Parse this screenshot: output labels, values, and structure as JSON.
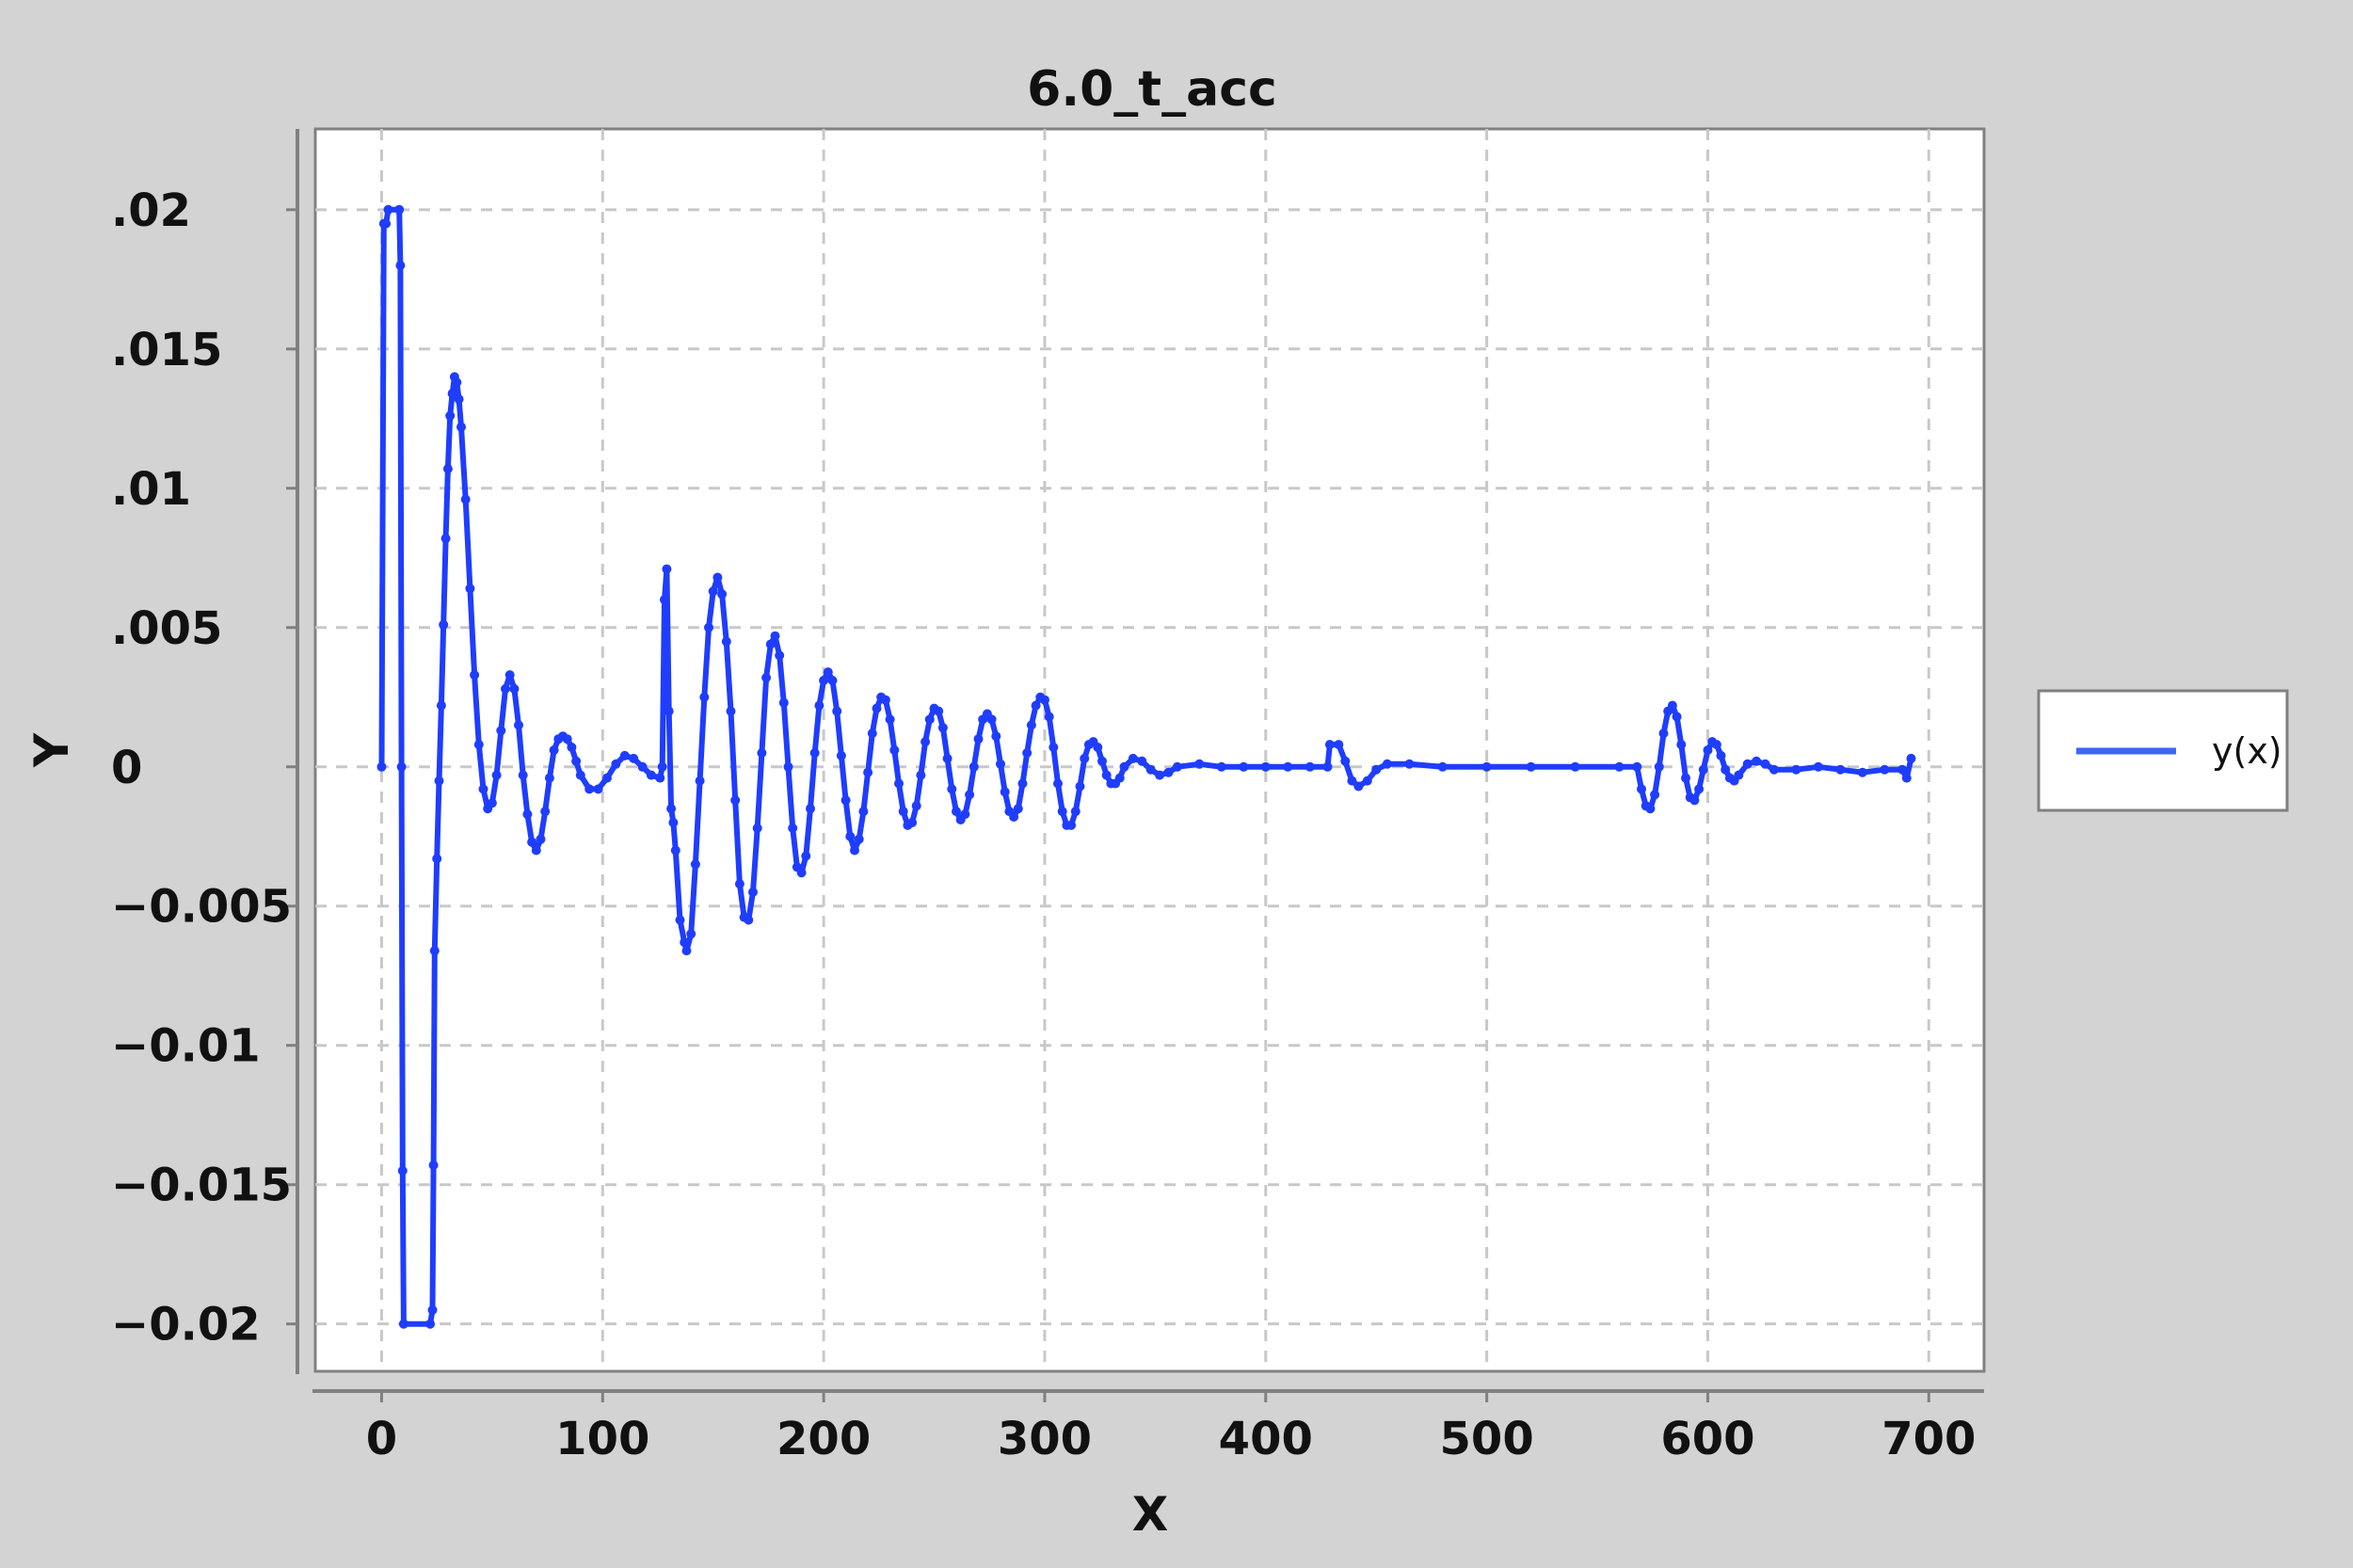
{
  "chart_data": {
    "type": "line",
    "title": "6.0_t_acc",
    "xlabel": "X",
    "ylabel": "Y",
    "xlim": [
      -30,
      725
    ],
    "ylim": [
      -0.0217,
      0.0229
    ],
    "x_ticks": [
      0,
      100,
      200,
      300,
      400,
      500,
      600,
      700
    ],
    "x_tick_labels": [
      "0",
      "100",
      "200",
      "300",
      "400",
      "500",
      "600",
      "700"
    ],
    "y_ticks": [
      0.02,
      0.015,
      0.01,
      0.005,
      0,
      -0.005,
      -0.01,
      -0.015,
      -0.02
    ],
    "y_tick_labels": [
      ".02",
      ".015",
      ".01",
      ".005",
      "0",
      "−0.005",
      "−0.01",
      "−0.015",
      "−0.02"
    ],
    "grid": true,
    "legend_position": "right",
    "colors": {
      "series": "#1f3dff",
      "background": "#d3d3d3",
      "plot_background": "#ffffff",
      "frame": "#808080"
    },
    "series": [
      {
        "name": "y(x)",
        "points": [
          [
            0,
            0
          ],
          [
            1,
            0.0195
          ],
          [
            2,
            0.0195
          ],
          [
            3,
            0.02
          ],
          [
            8,
            0.02
          ],
          [
            8.5,
            0.018
          ],
          [
            9,
            0.0
          ],
          [
            9.5,
            -0.0145
          ],
          [
            10,
            -0.02
          ],
          [
            22,
            -0.02
          ],
          [
            23,
            -0.0195
          ],
          [
            23.5,
            -0.0143
          ],
          [
            24,
            -0.0066
          ],
          [
            25,
            -0.0033
          ],
          [
            26,
            -0.0005
          ],
          [
            27,
            0.0022
          ],
          [
            28,
            0.0051
          ],
          [
            29,
            0.0082
          ],
          [
            30,
            0.0107
          ],
          [
            31,
            0.0126
          ],
          [
            32,
            0.0134
          ],
          [
            33,
            0.014
          ],
          [
            34,
            0.0138
          ],
          [
            35,
            0.0132
          ],
          [
            36,
            0.0122
          ],
          [
            38,
            0.0096
          ],
          [
            40,
            0.0064
          ],
          [
            42,
            0.0033
          ],
          [
            44,
            0.0008
          ],
          [
            46,
            -0.0008
          ],
          [
            48,
            -0.0015
          ],
          [
            50,
            -0.0013
          ],
          [
            52,
            -0.0003
          ],
          [
            54,
            0.0013
          ],
          [
            56,
            0.0028
          ],
          [
            58,
            0.0033
          ],
          [
            60,
            0.0028
          ],
          [
            62,
            0.0015
          ],
          [
            64,
            -0.0003
          ],
          [
            66,
            -0.0017
          ],
          [
            68,
            -0.0027
          ],
          [
            70,
            -0.003
          ],
          [
            72,
            -0.0026
          ],
          [
            74,
            -0.0016
          ],
          [
            76,
            -0.0004
          ],
          [
            78,
            0.0006
          ],
          [
            80,
            0.001
          ],
          [
            82,
            0.0011
          ],
          [
            84,
            0.001
          ],
          [
            86,
            0.0007
          ],
          [
            88,
            0.0002
          ],
          [
            90,
            -0.0003
          ],
          [
            94,
            -0.0008
          ],
          [
            98,
            -0.0008
          ],
          [
            102,
            -0.0004
          ],
          [
            106,
            0.0001
          ],
          [
            110,
            0.0004
          ],
          [
            114,
            0.0003
          ],
          [
            118,
            0.0
          ],
          [
            122,
            -0.0003
          ],
          [
            126,
            -0.0004
          ],
          [
            127,
            0.0
          ],
          [
            128,
            0.006
          ],
          [
            129,
            0.0071
          ],
          [
            130,
            0.002
          ],
          [
            131,
            -0.0015
          ],
          [
            132,
            -0.002
          ],
          [
            133,
            -0.003
          ],
          [
            135,
            -0.0055
          ],
          [
            137,
            -0.0063
          ],
          [
            138,
            -0.0066
          ],
          [
            140,
            -0.006
          ],
          [
            142,
            -0.0035
          ],
          [
            144,
            -0.0005
          ],
          [
            146,
            0.0025
          ],
          [
            148,
            0.005
          ],
          [
            150,
            0.0063
          ],
          [
            152,
            0.0068
          ],
          [
            154,
            0.0062
          ],
          [
            156,
            0.0045
          ],
          [
            158,
            0.002
          ],
          [
            160,
            -0.0012
          ],
          [
            162,
            -0.0042
          ],
          [
            164,
            -0.0054
          ],
          [
            166,
            -0.0055
          ],
          [
            168,
            -0.0045
          ],
          [
            170,
            -0.0022
          ],
          [
            172,
            0.0005
          ],
          [
            174,
            0.0032
          ],
          [
            176,
            0.0044
          ],
          [
            178,
            0.0047
          ],
          [
            180,
            0.004
          ],
          [
            182,
            0.0023
          ],
          [
            184,
            0.0
          ],
          [
            186,
            -0.0022
          ],
          [
            188,
            -0.0036
          ],
          [
            190,
            -0.0038
          ],
          [
            192,
            -0.0032
          ],
          [
            194,
            -0.0015
          ],
          [
            196,
            0.0005
          ],
          [
            198,
            0.0022
          ],
          [
            200,
            0.0031
          ],
          [
            202,
            0.0034
          ],
          [
            204,
            0.0031
          ],
          [
            206,
            0.002
          ],
          [
            208,
            0.0004
          ],
          [
            210,
            -0.0012
          ],
          [
            212,
            -0.0025
          ],
          [
            214,
            -0.003
          ],
          [
            216,
            -0.0026
          ],
          [
            218,
            -0.0016
          ],
          [
            220,
            -0.0002
          ],
          [
            222,
            0.0012
          ],
          [
            224,
            0.0021
          ],
          [
            226,
            0.0025
          ],
          [
            228,
            0.0024
          ],
          [
            230,
            0.0017
          ],
          [
            232,
            0.0006
          ],
          [
            234,
            -0.0006
          ],
          [
            236,
            -0.0016
          ],
          [
            238,
            -0.0021
          ],
          [
            240,
            -0.002
          ],
          [
            242,
            -0.0014
          ],
          [
            244,
            -0.0003
          ],
          [
            246,
            0.0009
          ],
          [
            248,
            0.0017
          ],
          [
            250,
            0.0021
          ],
          [
            252,
            0.002
          ],
          [
            254,
            0.0014
          ],
          [
            256,
            0.0003
          ],
          [
            258,
            -0.0008
          ],
          [
            260,
            -0.0016
          ],
          [
            262,
            -0.0019
          ],
          [
            264,
            -0.0017
          ],
          [
            266,
            -0.001
          ],
          [
            268,
            0.0
          ],
          [
            270,
            0.001
          ],
          [
            272,
            0.0017
          ],
          [
            274,
            0.0019
          ],
          [
            276,
            0.0017
          ],
          [
            278,
            0.0011
          ],
          [
            280,
            0.0001
          ],
          [
            282,
            -0.0009
          ],
          [
            284,
            -0.0016
          ],
          [
            286,
            -0.0018
          ],
          [
            288,
            -0.0015
          ],
          [
            290,
            -0.0006
          ],
          [
            292,
            0.0005
          ],
          [
            294,
            0.0015
          ],
          [
            296,
            0.0022
          ],
          [
            298,
            0.0025
          ],
          [
            300,
            0.0024
          ],
          [
            302,
            0.0018
          ],
          [
            304,
            0.0007
          ],
          [
            306,
            -0.0006
          ],
          [
            308,
            -0.0016
          ],
          [
            310,
            -0.0021
          ],
          [
            312,
            -0.0021
          ],
          [
            314,
            -0.0016
          ],
          [
            316,
            -0.0007
          ],
          [
            318,
            0.0003
          ],
          [
            320,
            0.0008
          ],
          [
            322,
            0.0009
          ],
          [
            324,
            0.0007
          ],
          [
            326,
            0.0002
          ],
          [
            328,
            -0.0003
          ],
          [
            330,
            -0.0006
          ],
          [
            332,
            -0.0006
          ],
          [
            334,
            -0.0004
          ],
          [
            336,
            0.0
          ],
          [
            340,
            0.0003
          ],
          [
            344,
            0.0002
          ],
          [
            348,
            -0.0001
          ],
          [
            352,
            -0.0003
          ],
          [
            356,
            -0.0002
          ],
          [
            360,
            0.0
          ],
          [
            370,
            0.0001
          ],
          [
            380,
            0.0
          ],
          [
            390,
            0.0
          ],
          [
            400,
            0.0
          ],
          [
            410,
            0.0
          ],
          [
            420,
            0.0
          ],
          [
            428,
            0.0
          ],
          [
            429,
            0.0008
          ],
          [
            433,
            0.0008
          ],
          [
            436,
            0.0002
          ],
          [
            439,
            -0.0005
          ],
          [
            442,
            -0.0007
          ],
          [
            446,
            -0.0005
          ],
          [
            450,
            -0.0001
          ],
          [
            455,
            0.0001
          ],
          [
            465,
            0.0001
          ],
          [
            480,
            0.0
          ],
          [
            500,
            0.0
          ],
          [
            520,
            0.0
          ],
          [
            540,
            0.0
          ],
          [
            560,
            0.0
          ],
          [
            568,
            0.0
          ],
          [
            570,
            -0.0008
          ],
          [
            572,
            -0.0014
          ],
          [
            574,
            -0.0015
          ],
          [
            576,
            -0.001
          ],
          [
            578,
            0.0
          ],
          [
            580,
            0.0012
          ],
          [
            582,
            0.002
          ],
          [
            584,
            0.0022
          ],
          [
            586,
            0.0018
          ],
          [
            588,
            0.0008
          ],
          [
            590,
            -0.0004
          ],
          [
            592,
            -0.0011
          ],
          [
            594,
            -0.0012
          ],
          [
            596,
            -0.0008
          ],
          [
            598,
            -0.0001
          ],
          [
            600,
            0.0006
          ],
          [
            602,
            0.0009
          ],
          [
            604,
            0.0008
          ],
          [
            606,
            0.0004
          ],
          [
            608,
            -0.0001
          ],
          [
            610,
            -0.0004
          ],
          [
            612,
            -0.0005
          ],
          [
            614,
            -0.0003
          ],
          [
            618,
            0.0001
          ],
          [
            622,
            0.0002
          ],
          [
            626,
            0.0001
          ],
          [
            630,
            -0.0001
          ],
          [
            640,
            -0.0001
          ],
          [
            650,
            0.0
          ],
          [
            660,
            -0.0001
          ],
          [
            670,
            -0.0002
          ],
          [
            680,
            -0.0001
          ],
          [
            688,
            -0.0001
          ],
          [
            690,
            -0.0004
          ],
          [
            692,
            0.0003
          ]
        ]
      }
    ]
  }
}
